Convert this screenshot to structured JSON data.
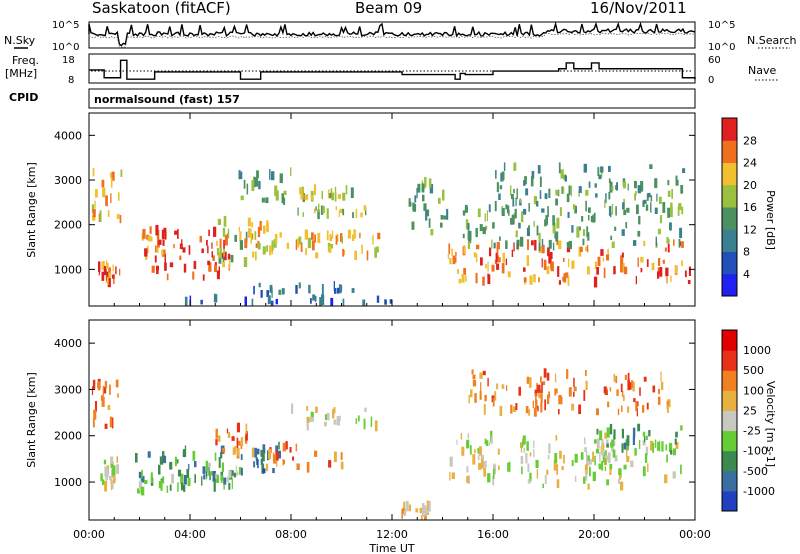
{
  "header": {
    "station": "Saskatoon (fitACF)",
    "beam": "Beam 09",
    "date": "16/Nov/2011"
  },
  "noise_panel": {
    "left_label": "N.Sky",
    "right_label": "N.Search",
    "left_ticks": [
      "10^5",
      "10^0"
    ],
    "right_ticks": [
      "10^5",
      "10^0"
    ]
  },
  "freq_panel": {
    "left_label_line1": "Freq.",
    "left_label_line2": "[MHz]",
    "right_label": "Nave",
    "left_ticks": [
      "18",
      "8"
    ],
    "right_ticks": [
      "60",
      "0"
    ],
    "freq_profile_mhz": [
      [
        0,
        13.2
      ],
      [
        0.6,
        10.5
      ],
      [
        1.2,
        10.5
      ],
      [
        1.25,
        16.5
      ],
      [
        1.5,
        10
      ],
      [
        2.6,
        12.5
      ],
      [
        6,
        10
      ],
      [
        6.8,
        12.5
      ],
      [
        8.4,
        12.5
      ],
      [
        12.4,
        11.6
      ],
      [
        14.5,
        10
      ],
      [
        14.7,
        12
      ],
      [
        14.9,
        11.6
      ],
      [
        16,
        12.8
      ],
      [
        18.4,
        12.8
      ],
      [
        18.6,
        13.6
      ],
      [
        18.9,
        15.6
      ],
      [
        19.2,
        13.6
      ],
      [
        19.6,
        13.6
      ],
      [
        19.9,
        15.6
      ],
      [
        20.2,
        13.6
      ],
      [
        22.6,
        13.6
      ],
      [
        23.5,
        10.5
      ],
      [
        24,
        10
      ]
    ],
    "nave_dotted_level": 22
  },
  "cpid": {
    "label": "CPID",
    "program": "normalsound (fast) 157"
  },
  "x_axis": {
    "label": "Time UT",
    "ticks": [
      "00:00",
      "04:00",
      "08:00",
      "12:00",
      "16:00",
      "20:00",
      "00:00"
    ]
  },
  "chart_data": [
    {
      "type": "heatmap",
      "title": "Power",
      "ylabel": "Slant Range [km]",
      "yticks": [
        "1000",
        "2000",
        "3000",
        "4000"
      ],
      "ylim": [
        180,
        4500
      ],
      "xlim_hours": [
        0,
        24
      ],
      "colorbar": {
        "label": "Power [dB]",
        "ticks": [
          "4",
          "8",
          "12",
          "16",
          "20",
          "24",
          "28"
        ],
        "colors": [
          "#2020f0",
          "#2050b8",
          "#3a8090",
          "#4a9060",
          "#9ac040",
          "#f0c030",
          "#f07020",
          "#e02020"
        ]
      },
      "blobs": [
        {
          "t": [
            0.1,
            1.3
          ],
          "r": [
            2100,
            3300
          ],
          "level": 5
        },
        {
          "t": [
            0.3,
            1.2
          ],
          "r": [
            700,
            1100
          ],
          "level": 6
        },
        {
          "t": [
            1.8,
            3.0
          ],
          "r": [
            1000,
            1900
          ],
          "level": 6
        },
        {
          "t": [
            2.6,
            5.6
          ],
          "r": [
            800,
            1900
          ],
          "level": 7
        },
        {
          "t": [
            4.8,
            6.5
          ],
          "r": [
            1100,
            2100
          ],
          "level": 4
        },
        {
          "t": [
            6.1,
            7.4
          ],
          "r": [
            1300,
            2000
          ],
          "level": 5
        },
        {
          "t": [
            5.9,
            8.0
          ],
          "r": [
            2500,
            3200
          ],
          "level": 3
        },
        {
          "t": [
            7.0,
            10.0
          ],
          "r": [
            1400,
            1800
          ],
          "level": 5
        },
        {
          "t": [
            8.4,
            11.6
          ],
          "r": [
            1300,
            1800
          ],
          "level": 5
        },
        {
          "t": [
            8.0,
            11.0
          ],
          "r": [
            2200,
            2400
          ],
          "level": 4
        },
        {
          "t": [
            8.0,
            10.5
          ],
          "r": [
            2600,
            2800
          ],
          "level": 4
        },
        {
          "t": [
            6.4,
            10.5
          ],
          "r": [
            450,
            650
          ],
          "level": 2
        },
        {
          "t": [
            3.5,
            12.0
          ],
          "r": [
            200,
            380
          ],
          "level": 1
        },
        {
          "t": [
            12.6,
            14.2
          ],
          "r": [
            1800,
            3000
          ],
          "level": 3
        },
        {
          "t": [
            14.2,
            23.8
          ],
          "r": [
            700,
            1600
          ],
          "level": 6
        },
        {
          "t": [
            14.8,
            23.5
          ],
          "r": [
            1500,
            2400
          ],
          "level": 3
        },
        {
          "t": [
            16.0,
            23.5
          ],
          "r": [
            2400,
            3300
          ],
          "level": 3
        }
      ]
    },
    {
      "type": "heatmap",
      "title": "Velocity",
      "ylabel": "Slant Range [km]",
      "yticks": [
        "1000",
        "2000",
        "3000",
        "4000"
      ],
      "ylim": [
        180,
        4500
      ],
      "xlim_hours": [
        0,
        24
      ],
      "colorbar": {
        "label": "Velocity [m s-1]",
        "ticks": [
          "1000",
          "500",
          "100",
          "25",
          "-25",
          "-100",
          "-500",
          "-1000"
        ],
        "colors": [
          "#2040c0",
          "#3a6ea0",
          "#3c8a50",
          "#66cc33",
          "#c8c8c0",
          "#e8b040",
          "#f08020",
          "#e83018",
          "#e00000"
        ]
      },
      "blobs": [
        {
          "t": [
            0.1,
            1.2
          ],
          "r": [
            2000,
            3200
          ],
          "level": 6
        },
        {
          "t": [
            0.3,
            1.2
          ],
          "r": [
            900,
            1500
          ],
          "level": 4
        },
        {
          "t": [
            1.8,
            5.6
          ],
          "r": [
            1000,
            1700
          ],
          "level": 2
        },
        {
          "t": [
            1.9,
            4.0
          ],
          "r": [
            800,
            1200
          ],
          "level": 3
        },
        {
          "t": [
            4.5,
            6.0
          ],
          "r": [
            900,
            1400
          ],
          "level": 3
        },
        {
          "t": [
            5.0,
            6.5
          ],
          "r": [
            1600,
            2200
          ],
          "level": 6
        },
        {
          "t": [
            6.0,
            7.5
          ],
          "r": [
            1200,
            2000
          ],
          "level": 1
        },
        {
          "t": [
            7.0,
            10.0
          ],
          "r": [
            1300,
            1800
          ],
          "level": 6
        },
        {
          "t": [
            7.5,
            11.5
          ],
          "r": [
            2200,
            2600
          ],
          "level": 4
        },
        {
          "t": [
            12.3,
            13.5
          ],
          "r": [
            200,
            500
          ],
          "level": 5
        },
        {
          "t": [
            14.2,
            23.5
          ],
          "r": [
            900,
            2000
          ],
          "level": 4
        },
        {
          "t": [
            15.0,
            23.0
          ],
          "r": [
            2500,
            3400
          ],
          "level": 6
        },
        {
          "t": [
            20.0,
            23.5
          ],
          "r": [
            1600,
            2200
          ],
          "level": 2
        }
      ]
    }
  ]
}
